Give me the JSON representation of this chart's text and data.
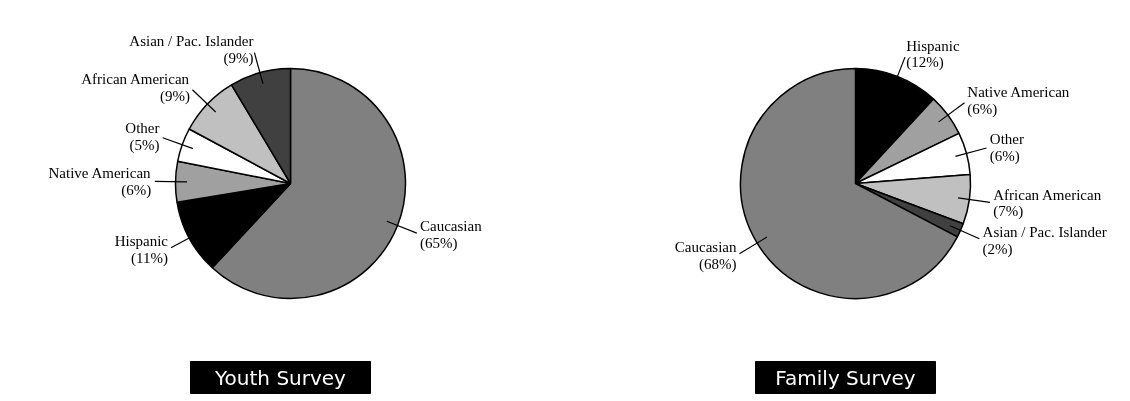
{
  "chart_data": [
    {
      "type": "pie",
      "title": "Youth Survey",
      "categories": [
        "Caucasian",
        "Hispanic",
        "Native American",
        "Other",
        "African American",
        "Asian / Pac. Islander"
      ],
      "values": [
        65,
        11,
        6,
        5,
        9,
        9
      ],
      "value_labels": [
        "(65%)",
        "(11%)",
        "(6%)",
        "(5%)",
        "(9%)",
        "(9%)"
      ],
      "colors": [
        "#808080",
        "#000000",
        "#a0a0a0",
        "#ffffff",
        "#c0c0c0",
        "#404040"
      ]
    },
    {
      "type": "pie",
      "title": "Family Survey",
      "categories": [
        "Hispanic",
        "Native American",
        "Other",
        "African American",
        "Asian / Pac. Islander",
        "Caucasian"
      ],
      "values": [
        12,
        6,
        6,
        7,
        2,
        68
      ],
      "value_labels": [
        "(12%)",
        "(6%)",
        "(6%)",
        "(7%)",
        "(2%)",
        "(68%)"
      ],
      "colors": [
        "#000000",
        "#a0a0a0",
        "#ffffff",
        "#c0c0c0",
        "#404040",
        "#808080"
      ]
    }
  ]
}
